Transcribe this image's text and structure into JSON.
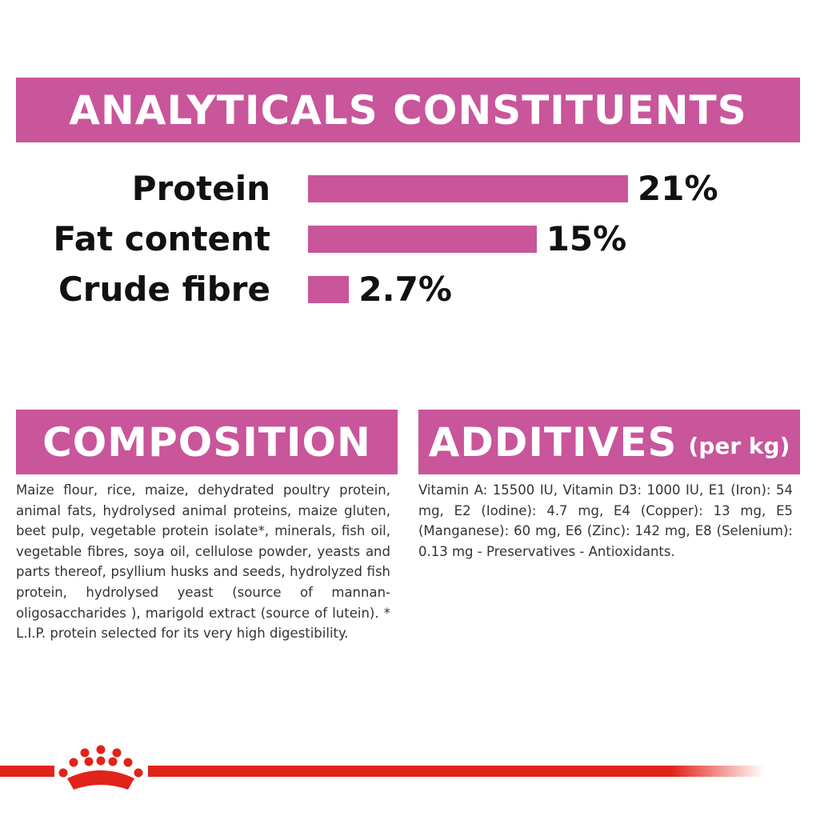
{
  "chart_data": {
    "type": "bar",
    "title": "ANALYTICALS CONSTITUENTS",
    "categories": [
      "Protein",
      "Fat content",
      "Crude fibre"
    ],
    "values": [
      21,
      15,
      2.7
    ],
    "value_labels": [
      "21%",
      "15%",
      "2.7%"
    ],
    "color": "#c9559a"
  },
  "composition": {
    "title": "COMPOSITION",
    "text": "Maize flour, rice, maize, dehydrated poultry protein, animal fats, hydrolysed animal proteins, maize gluten, beet pulp, vegetable protein isolate*, minerals, fish oil, vegetable fibres, soya oil, cellulose powder, yeasts and parts thereof, psyllium husks and seeds, hydrolyzed fish protein, hydrolysed yeast (source of mannan-oligosaccharides ), marigold extract (source of lutein). * L.I.P. protein selected for its very high digestibility."
  },
  "additives": {
    "title": "ADDITIVES",
    "subtitle": "(per kg)",
    "text": "Vitamin A: 15500 IU, Vitamin D3: 1000 IU, E1 (Iron): 54 mg, E2 (Iodine): 4.7 mg, E4 (Copper): 13 mg, E5 (Manganese): 60 mg, E6 (Zinc): 142 mg, E8 (Selenium): 0.13 mg - Preservatives - Antioxidants."
  }
}
